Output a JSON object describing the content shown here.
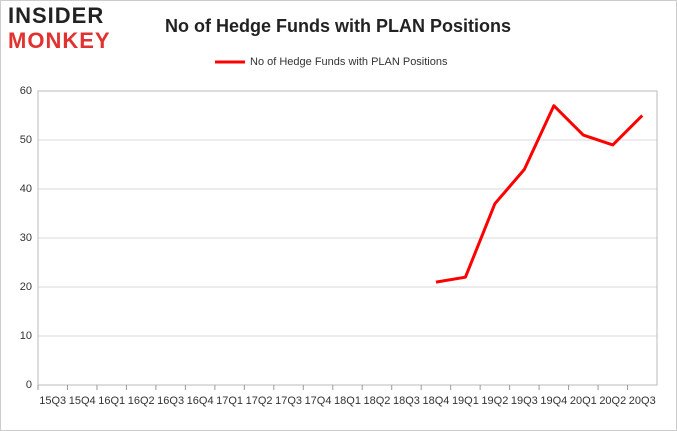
{
  "chart_data": {
    "type": "line",
    "title": "No of Hedge Funds with PLAN Positions",
    "logo": [
      "INSIDER",
      "MONKEY"
    ],
    "categories": [
      "15Q3",
      "15Q4",
      "16Q1",
      "16Q2",
      "16Q3",
      "16Q4",
      "17Q1",
      "17Q2",
      "17Q3",
      "17Q4",
      "18Q1",
      "18Q2",
      "18Q3",
      "18Q4",
      "19Q1",
      "19Q2",
      "19Q3",
      "19Q4",
      "20Q1",
      "20Q2",
      "20Q3"
    ],
    "series": [
      {
        "name": "No of Hedge Funds with PLAN Positions",
        "color": "#ff0000",
        "values": [
          null,
          null,
          null,
          null,
          null,
          null,
          null,
          null,
          null,
          null,
          null,
          null,
          null,
          21,
          22,
          37,
          44,
          57,
          51,
          49,
          55
        ]
      }
    ],
    "ylim": [
      0,
      60
    ],
    "yticks": [
      0,
      10,
      20,
      30,
      40,
      50,
      60
    ],
    "grid": true,
    "legend": "top"
  }
}
